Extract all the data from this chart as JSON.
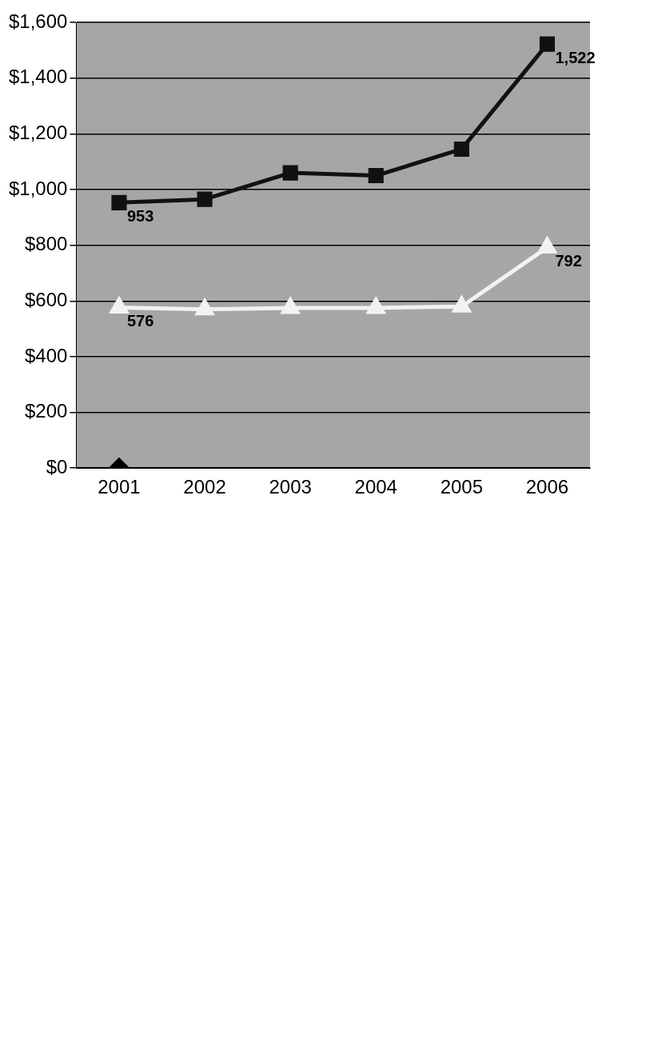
{
  "chart_data": {
    "type": "line",
    "categories": [
      "2001",
      "2002",
      "2003",
      "2004",
      "2005",
      "2006"
    ],
    "series": [
      {
        "color": "#111111",
        "marker": "square",
        "values": [
          953,
          965,
          1060,
          1050,
          1145,
          1522
        ],
        "value_labels": [
          "953",
          null,
          null,
          null,
          null,
          "1,522"
        ]
      },
      {
        "color": "#f2f2f2",
        "marker": "triangle",
        "values": [
          576,
          570,
          575,
          575,
          580,
          792
        ],
        "value_labels": [
          "576",
          null,
          null,
          null,
          null,
          "792"
        ]
      },
      {
        "color": "#000000",
        "marker": "diamond",
        "values": [
          0,
          null,
          null,
          null,
          null,
          null
        ]
      }
    ],
    "ylim": [
      0,
      1600
    ],
    "yticks": [
      {
        "value": 0,
        "label": "$0"
      },
      {
        "value": 200,
        "label": "$200"
      },
      {
        "value": 400,
        "label": "$400"
      },
      {
        "value": 600,
        "label": "$600"
      },
      {
        "value": 800,
        "label": "$800"
      },
      {
        "value": 1000,
        "label": "$1,000"
      },
      {
        "value": 1200,
        "label": "$1,200"
      },
      {
        "value": 1400,
        "label": "$1,400"
      },
      {
        "value": 1600,
        "label": "$1,600"
      }
    ],
    "grid": "y",
    "legend": false
  }
}
